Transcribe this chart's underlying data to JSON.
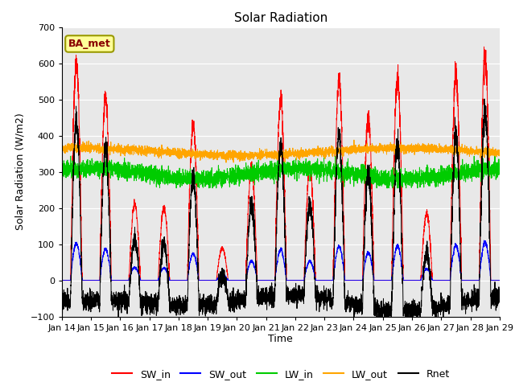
{
  "title": "Solar Radiation",
  "ylabel": "Solar Radiation (W/m2)",
  "xlabel": "Time",
  "ylim": [
    -100,
    700
  ],
  "yticks": [
    -100,
    0,
    100,
    200,
    300,
    400,
    500,
    600,
    700
  ],
  "x_labels": [
    "Jan 14",
    "Jan 15",
    "Jan 16",
    "Jan 17",
    "Jan 18",
    "Jan 19",
    "Jan 20",
    "Jan 21",
    "Jan 22",
    "Jan 23",
    "Jan 24",
    "Jan 25",
    "Jan 26",
    "Jan 27",
    "Jan 28",
    "Jan 29"
  ],
  "n_days": 15,
  "points_per_day": 288,
  "SW_in_color": "#ff0000",
  "SW_out_color": "#0000ff",
  "LW_in_color": "#00cc00",
  "LW_out_color": "#ffa500",
  "Rnet_color": "#000000",
  "bg_color": "#e8e8e8",
  "box_label": "BA_met",
  "box_facecolor": "#ffff99",
  "box_edgecolor": "#999900",
  "box_textcolor": "#880000",
  "legend_entries": [
    "SW_in",
    "SW_out",
    "LW_in",
    "LW_out",
    "Rnet"
  ],
  "figsize": [
    6.4,
    4.8
  ],
  "dpi": 100,
  "peaks": [
    600,
    510,
    210,
    200,
    430,
    90,
    310,
    500,
    310,
    560,
    450,
    560,
    185,
    570,
    625
  ]
}
